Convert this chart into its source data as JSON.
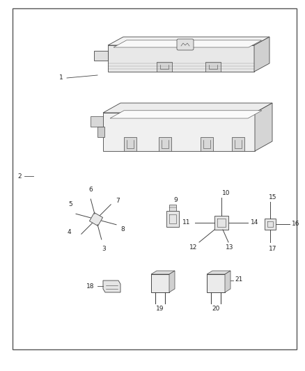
{
  "bg_color": "#ffffff",
  "border_color": "#555555",
  "fig_width": 4.38,
  "fig_height": 5.33,
  "dpi": 100,
  "line_color": "#444444",
  "text_color": "#222222",
  "font_size": 6.5,
  "border_lw": 1.0
}
